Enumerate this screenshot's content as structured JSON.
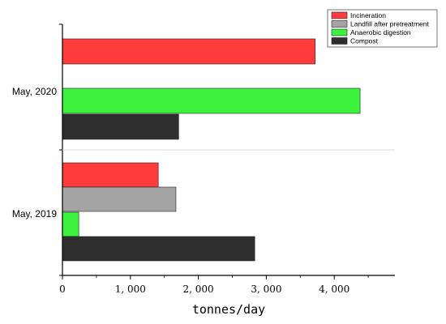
{
  "chart_data": {
    "type": "bar",
    "orientation": "horizontal",
    "xlabel": "tonnes/day",
    "ylabel": "",
    "xlim": [
      0,
      4800
    ],
    "xticks": [
      0,
      1000,
      2000,
      3000,
      4000
    ],
    "xtick_labels": [
      "0",
      "1, 000",
      "2, 000",
      "3, 000",
      "4, 000"
    ],
    "legend_position": "top-right",
    "grid": false,
    "groups": [
      {
        "label": "May, 2020",
        "bars": [
          {
            "series": "Incineration",
            "value": 3720
          },
          {
            "series": "Anaerobic digestion",
            "value": 4380
          },
          {
            "series": "Compost",
            "value": 1710
          }
        ]
      },
      {
        "label": "May, 2019",
        "bars": [
          {
            "series": "Incineration",
            "value": 1410
          },
          {
            "series": "Landfill after pretreatment",
            "value": 1670
          },
          {
            "series": "Anaerobic digestion",
            "value": 240
          },
          {
            "series": "Compost",
            "value": 2830
          }
        ]
      }
    ],
    "series": [
      {
        "name": "Incineration",
        "color": "#ff3b3b"
      },
      {
        "name": "Landfill after pretreatment",
        "color": "#a4a4a4"
      },
      {
        "name": "Anaerobic digestion",
        "color": "#3cf23c"
      },
      {
        "name": "Compost",
        "color": "#2e2e2e"
      }
    ]
  }
}
